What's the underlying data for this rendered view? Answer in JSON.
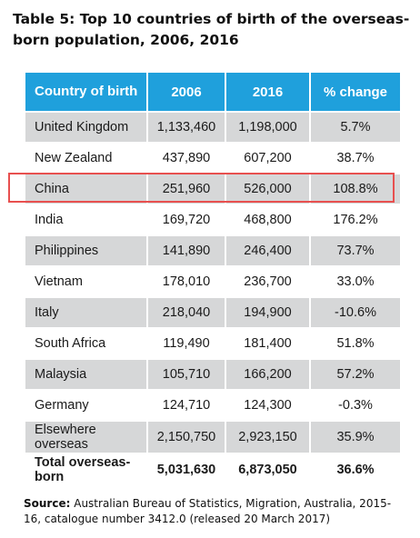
{
  "title": "Table 5: Top 10 countries of birth of the overseas-born population, 2006, 2016",
  "table": {
    "headers": [
      "Country of birth",
      "2006",
      "2016",
      "% change"
    ],
    "rows": [
      [
        "United Kingdom",
        "1,133,460",
        "1,198,000",
        "5.7%"
      ],
      [
        "New Zealand",
        "437,890",
        "607,200",
        "38.7%"
      ],
      [
        "China",
        "251,960",
        "526,000",
        "108.8%"
      ],
      [
        "India",
        "169,720",
        "468,800",
        "176.2%"
      ],
      [
        "Philippines",
        "141,890",
        "246,400",
        "73.7%"
      ],
      [
        "Vietnam",
        "178,010",
        "236,700",
        "33.0%"
      ],
      [
        "Italy",
        "218,040",
        "194,900",
        "-10.6%"
      ],
      [
        "South Africa",
        "119,490",
        "181,400",
        "51.8%"
      ],
      [
        "Malaysia",
        "105,710",
        "166,200",
        "57.2%"
      ],
      [
        "Germany",
        "124,710",
        "124,300",
        "-0.3%"
      ],
      [
        "Elsewhere overseas",
        "2,150,750",
        "2,923,150",
        "35.9%"
      ]
    ],
    "total": [
      "Total overseas-born",
      "5,031,630",
      "6,873,050",
      "36.6%"
    ]
  },
  "source": {
    "label": "Source:",
    "text": "Australian Bureau of Statistics, Migration, Australia, 2015-16, catalogue number 3412.0 (released 20 March 2017)"
  },
  "colors": {
    "header_bg": "#1fa0dc",
    "row_alt_bg": "#d6d7d8",
    "highlight_border": "#e8504f"
  }
}
